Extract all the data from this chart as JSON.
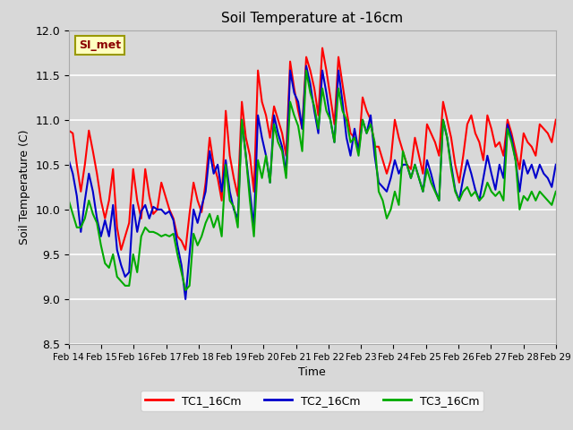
{
  "title": "Soil Temperature at -16cm",
  "xlabel": "Time",
  "ylabel": "Soil Temperature (C)",
  "ylim": [
    8.5,
    12.0
  ],
  "annotation_text": "SI_met",
  "annotation_color": "#8B0000",
  "annotation_bg": "#FFFFC0",
  "annotation_edge": "#999900",
  "bg_color": "#D8D8D8",
  "grid_color": "white",
  "xtick_labels": [
    "Feb 14",
    "Feb 15",
    "Feb 16",
    "Feb 17",
    "Feb 18",
    "Feb 19",
    "Feb 20",
    "Feb 21",
    "Feb 22",
    "Feb 23",
    "Feb 24",
    "Feb 25",
    "Feb 26",
    "Feb 27",
    "Feb 28",
    "Feb 29"
  ],
  "ytick_values": [
    8.5,
    9.0,
    9.5,
    10.0,
    10.5,
    11.0,
    11.5,
    12.0
  ],
  "line_colors": {
    "TC1_16Cm": "#FF0000",
    "TC2_16Cm": "#0000CC",
    "TC3_16Cm": "#00AA00"
  },
  "line_width": 1.5,
  "TC1_16Cm": [
    10.88,
    10.85,
    10.5,
    10.2,
    10.5,
    10.88,
    10.65,
    10.4,
    10.1,
    9.9,
    10.1,
    10.45,
    9.8,
    9.55,
    9.7,
    9.85,
    10.45,
    10.1,
    9.9,
    10.45,
    10.15,
    9.95,
    10.0,
    10.3,
    10.15,
    10.0,
    9.9,
    9.7,
    9.65,
    9.55,
    9.95,
    10.3,
    10.1,
    9.97,
    10.3,
    10.8,
    10.5,
    10.35,
    10.1,
    11.1,
    10.6,
    10.35,
    10.15,
    11.2,
    10.8,
    10.6,
    10.2,
    11.55,
    11.2,
    11.05,
    10.8,
    11.15,
    11.0,
    10.85,
    10.6,
    11.65,
    11.35,
    11.1,
    10.9,
    11.7,
    11.55,
    11.35,
    11.05,
    11.8,
    11.55,
    11.25,
    10.95,
    11.7,
    11.4,
    11.1,
    10.85,
    10.8,
    10.65,
    11.25,
    11.1,
    11.0,
    10.7,
    10.7,
    10.55,
    10.4,
    10.55,
    11.0,
    10.8,
    10.65,
    10.5,
    10.45,
    10.8,
    10.6,
    10.4,
    10.95,
    10.85,
    10.75,
    10.6,
    11.2,
    11.0,
    10.8,
    10.5,
    10.3,
    10.6,
    10.95,
    11.05,
    10.85,
    10.75,
    10.55,
    11.05,
    10.9,
    10.7,
    10.75,
    10.6,
    11.0,
    10.85,
    10.65,
    10.45,
    10.85,
    10.75,
    10.7,
    10.6,
    10.95,
    10.9,
    10.85,
    10.75,
    11.0
  ],
  "TC2_16Cm": [
    10.55,
    10.4,
    10.15,
    9.75,
    10.1,
    10.4,
    10.2,
    9.9,
    9.7,
    9.88,
    9.7,
    10.05,
    9.55,
    9.38,
    9.25,
    9.3,
    10.05,
    9.75,
    9.98,
    10.05,
    9.9,
    10.03,
    10.0,
    10.0,
    9.95,
    9.98,
    9.88,
    9.6,
    9.38,
    9.0,
    9.5,
    10.0,
    9.85,
    10.03,
    10.2,
    10.65,
    10.4,
    10.5,
    10.2,
    10.55,
    10.2,
    10.0,
    9.9,
    11.0,
    10.6,
    10.2,
    9.8,
    11.05,
    10.8,
    10.6,
    10.3,
    11.05,
    10.85,
    10.7,
    10.4,
    11.55,
    11.3,
    11.2,
    10.9,
    11.6,
    11.4,
    11.1,
    10.85,
    11.55,
    11.3,
    11.0,
    10.75,
    11.55,
    11.2,
    10.8,
    10.6,
    10.9,
    10.65,
    11.0,
    10.85,
    11.05,
    10.6,
    10.3,
    10.25,
    10.2,
    10.35,
    10.55,
    10.4,
    10.5,
    10.5,
    10.35,
    10.5,
    10.35,
    10.2,
    10.55,
    10.4,
    10.22,
    10.1,
    11.0,
    10.8,
    10.5,
    10.22,
    10.1,
    10.35,
    10.55,
    10.4,
    10.22,
    10.1,
    10.35,
    10.6,
    10.4,
    10.22,
    10.5,
    10.35,
    10.95,
    10.8,
    10.55,
    10.2,
    10.55,
    10.4,
    10.5,
    10.35,
    10.5,
    10.4,
    10.35,
    10.25,
    10.5
  ],
  "TC3_16Cm": [
    10.1,
    9.95,
    9.8,
    9.8,
    9.9,
    10.1,
    9.95,
    9.85,
    9.6,
    9.4,
    9.35,
    9.5,
    9.25,
    9.2,
    9.15,
    9.15,
    9.5,
    9.3,
    9.7,
    9.8,
    9.75,
    9.75,
    9.73,
    9.7,
    9.72,
    9.7,
    9.73,
    9.5,
    9.3,
    9.1,
    9.15,
    9.73,
    9.6,
    9.7,
    9.85,
    9.95,
    9.8,
    9.93,
    9.7,
    10.5,
    10.1,
    10.03,
    9.8,
    11.0,
    10.6,
    10.1,
    9.7,
    10.55,
    10.35,
    10.6,
    10.3,
    10.95,
    10.75,
    10.65,
    10.35,
    11.2,
    11.05,
    10.93,
    10.65,
    11.55,
    11.3,
    11.15,
    10.9,
    11.35,
    11.1,
    11.0,
    10.75,
    11.35,
    11.1,
    11.0,
    10.75,
    10.8,
    10.6,
    11.0,
    10.85,
    10.95,
    10.75,
    10.2,
    10.1,
    9.9,
    10.0,
    10.2,
    10.05,
    10.65,
    10.5,
    10.35,
    10.5,
    10.35,
    10.2,
    10.45,
    10.3,
    10.2,
    10.1,
    11.0,
    10.8,
    10.45,
    10.2,
    10.1,
    10.2,
    10.25,
    10.15,
    10.2,
    10.1,
    10.15,
    10.3,
    10.2,
    10.15,
    10.2,
    10.1,
    10.9,
    10.75,
    10.55,
    10.0,
    10.15,
    10.1,
    10.2,
    10.1,
    10.2,
    10.15,
    10.1,
    10.05,
    10.2
  ]
}
